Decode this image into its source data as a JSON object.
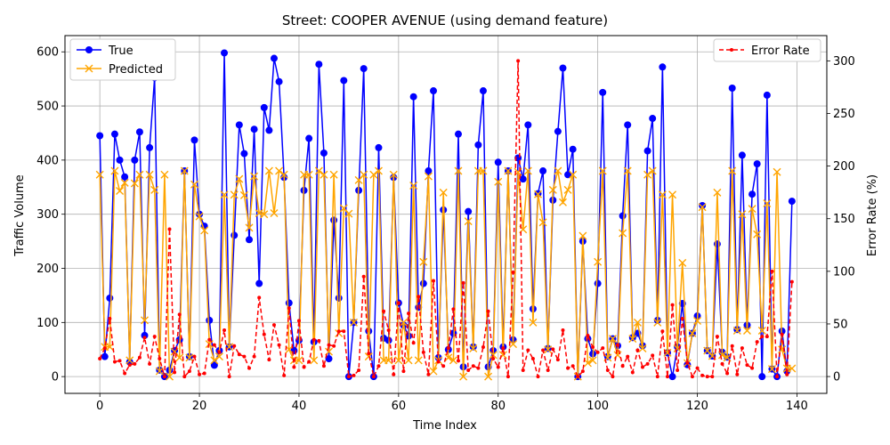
{
  "chart_data": {
    "type": "line",
    "title": "Street: COOPER AVENUE (using demand feature)",
    "xlabel": "Time Index",
    "ylabel": "Traffic Volume",
    "y2label": "Error Rate (%)",
    "xlim": [
      -7,
      146
    ],
    "ylim": [
      -31,
      630
    ],
    "y2lim": [
      -16,
      324
    ],
    "xticks": [
      0,
      20,
      40,
      60,
      80,
      100,
      120,
      140
    ],
    "yticks": [
      0,
      100,
      200,
      300,
      400,
      500,
      600
    ],
    "y2ticks": [
      0,
      50,
      100,
      150,
      200,
      250,
      300
    ],
    "grid": true,
    "legend_left": {
      "placement": "upper-left",
      "entries": [
        "True",
        "Predicted"
      ]
    },
    "legend_right": {
      "placement": "upper-right",
      "entries": [
        "Error Rate"
      ]
    },
    "colors": {
      "true": "#0000ff",
      "predicted": "#ffa500",
      "error": "#ff0000"
    },
    "x": [
      0,
      1,
      2,
      3,
      4,
      5,
      6,
      7,
      8,
      9,
      10,
      11,
      12,
      13,
      14,
      15,
      16,
      17,
      18,
      19,
      20,
      21,
      22,
      23,
      24,
      25,
      26,
      27,
      28,
      29,
      30,
      31,
      32,
      33,
      34,
      35,
      36,
      37,
      38,
      39,
      40,
      41,
      42,
      43,
      44,
      45,
      46,
      47,
      48,
      49,
      50,
      51,
      52,
      53,
      54,
      55,
      56,
      57,
      58,
      59,
      60,
      61,
      62,
      63,
      64,
      65,
      66,
      67,
      68,
      69,
      70,
      71,
      72,
      73,
      74,
      75,
      76,
      77,
      78,
      79,
      80,
      81,
      82,
      83,
      84,
      85,
      86,
      87,
      88,
      89,
      90,
      91,
      92,
      93,
      94,
      95,
      96,
      97,
      98,
      99,
      100,
      101,
      102,
      103,
      104,
      105,
      106,
      107,
      108,
      109,
      110,
      111,
      112,
      113,
      114,
      115,
      116,
      117,
      118,
      119,
      120,
      121,
      122,
      123,
      124,
      125,
      126,
      127,
      128,
      129,
      130,
      131,
      132,
      133,
      134,
      135,
      136,
      137,
      138,
      139
    ],
    "series": [
      {
        "name": "True",
        "values": [
          445,
          37,
          145,
          448,
          400,
          369,
          27,
          400,
          452,
          76,
          423,
          552,
          12,
          0,
          12,
          48,
          68,
          380,
          37,
          437,
          300,
          278,
          104,
          21,
          48,
          598,
          55,
          261,
          465,
          412,
          253,
          457,
          172,
          497,
          455,
          588,
          545,
          368,
          136,
          48,
          67,
          344,
          440,
          64,
          577,
          413,
          33,
          289,
          145,
          547,
          0,
          100,
          344,
          569,
          84,
          0,
          423,
          71,
          67,
          368,
          136,
          95,
          75,
          517,
          128,
          172,
          380,
          528,
          35,
          308,
          50,
          80,
          448,
          18,
          305,
          55,
          428,
          528,
          18,
          48,
          396,
          55,
          380,
          68,
          404,
          365,
          465,
          125,
          338,
          380,
          52,
          326,
          453,
          570,
          373,
          420,
          0,
          250,
          70,
          42,
          172,
          525,
          37,
          70,
          57,
          297,
          465,
          72,
          80,
          57,
          417,
          477,
          104,
          572,
          44,
          0,
          55,
          135,
          22,
          80,
          112,
          316,
          48,
          38,
          245,
          45,
          36,
          533,
          87,
          409,
          95,
          337,
          393,
          0,
          520,
          14,
          0,
          84,
          10,
          324
        ]
      },
      {
        "name": "Predicted",
        "values": [
          373,
          55,
          55,
          380,
          343,
          358,
          30,
          357,
          373,
          104,
          373,
          345,
          10,
          373,
          0,
          46,
          35,
          380,
          35,
          355,
          296,
          270,
          60,
          30,
          37,
          336,
          55,
          336,
          365,
          335,
          275,
          370,
          302,
          300,
          380,
          302,
          380,
          373,
          50,
          30,
          30,
          373,
          373,
          30,
          380,
          373,
          46,
          373,
          80,
          311,
          301,
          100,
          363,
          373,
          37,
          373,
          380,
          30,
          30,
          373,
          30,
          100,
          30,
          353,
          30,
          212,
          370,
          10,
          30,
          340,
          35,
          30,
          380,
          0,
          287,
          52,
          380,
          380,
          0,
          40,
          360,
          40,
          380,
          60,
          378,
          272,
          380,
          100,
          337,
          285,
          50,
          345,
          380,
          322,
          345,
          373,
          0,
          260,
          25,
          30,
          212,
          380,
          35,
          70,
          40,
          265,
          380,
          70,
          100,
          52,
          373,
          380,
          100,
          336,
          44,
          336,
          52,
          210,
          25,
          80,
          103,
          313,
          48,
          38,
          340,
          40,
          35,
          380,
          85,
          300,
          85,
          310,
          263,
          85,
          320,
          14,
          378,
          50,
          15,
          15
        ]
      },
      {
        "name": "Error Rate",
        "values": [
          17,
          27,
          55,
          14,
          15,
          3,
          11,
          12,
          18,
          37,
          12,
          38,
          17,
          0,
          140,
          4,
          59,
          0,
          5,
          19,
          2,
          3,
          35,
          30,
          23,
          44,
          0,
          29,
          21,
          19,
          8,
          19,
          75,
          40,
          16,
          49,
          30,
          1,
          65,
          9,
          53,
          9,
          14,
          35,
          34,
          10,
          30,
          29,
          43,
          43,
          0,
          1,
          6,
          95,
          22,
          0,
          10,
          62,
          44,
          2,
          70,
          5,
          60,
          32,
          76,
          23,
          2,
          91,
          14,
          10,
          27,
          64,
          15,
          89,
          6,
          10,
          8,
          28,
          62,
          17,
          9,
          27,
          0,
          99,
          300,
          6,
          25,
          17,
          0,
          25,
          6,
          26,
          16,
          44,
          8,
          10,
          0,
          5,
          39,
          28,
          23,
          27,
          6,
          0,
          30,
          10,
          19,
          4,
          25,
          9,
          12,
          20,
          0,
          43,
          0,
          68,
          6,
          55,
          13,
          0,
          8,
          1,
          0,
          0,
          38,
          12,
          3,
          29,
          2,
          27,
          11,
          8,
          33,
          38,
          38,
          100,
          0,
          40,
          2,
          90
        ]
      }
    ]
  }
}
